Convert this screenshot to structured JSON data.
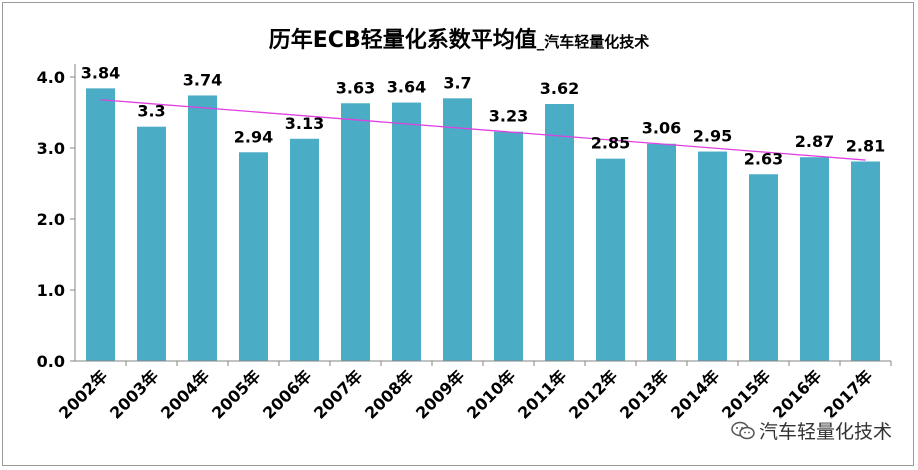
{
  "chart_data": {
    "type": "bar",
    "title_main": "历年ECB轻量化系数平均值",
    "title_sub": "_汽车轻量化技术",
    "categories": [
      "2002年",
      "2003年",
      "2004年",
      "2005年",
      "2006年",
      "2007年",
      "2008年",
      "2009年",
      "2010年",
      "2011年",
      "2012年",
      "2013年",
      "2014年",
      "2015年",
      "2016年",
      "2017年"
    ],
    "values": [
      3.84,
      3.3,
      3.74,
      2.94,
      3.13,
      3.63,
      3.64,
      3.7,
      3.23,
      3.62,
      2.85,
      3.06,
      2.95,
      2.63,
      2.87,
      2.81
    ],
    "data_labels": [
      "3.84",
      "3.3",
      "3.74",
      "2.94",
      "3.13",
      "3.63",
      "3.64",
      "3.7",
      "3.23",
      "3.62",
      "2.85",
      "3.06",
      "2.95",
      "2.63",
      "2.87",
      "2.81"
    ],
    "ylim": [
      0,
      4.0
    ],
    "yticks": [
      "0.0",
      "1.0",
      "2.0",
      "3.0",
      "4.0"
    ],
    "trendline": {
      "type": "linear",
      "start": 3.68,
      "end": 2.83
    },
    "grid": false,
    "legend": "none",
    "colors": {
      "bar": "#4bacc6",
      "trend": "#e040e0",
      "axis": "#868686",
      "text": "#000000"
    }
  },
  "watermark": {
    "text": "汽车轻量化技术",
    "icon": "wechat-icon"
  }
}
